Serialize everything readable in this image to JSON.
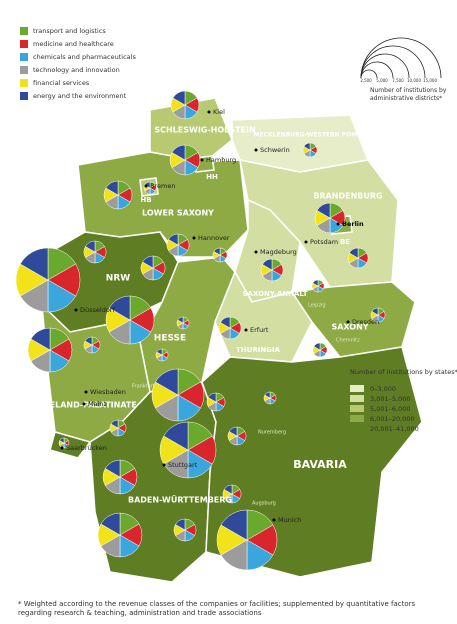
{
  "legend_categories": [
    {
      "label": "transport and logistics",
      "color": "#6aa82e"
    },
    {
      "label": "medicine and healthcare",
      "color": "#d9262c"
    },
    {
      "label": "chemicals and pharmaceuticals",
      "color": "#3aa6dc"
    },
    {
      "label": "technology and innovation",
      "color": "#9c9c9c"
    },
    {
      "label": "financial services",
      "color": "#f2e21a"
    },
    {
      "label": "energy and the environment",
      "color": "#2f4a9a"
    }
  ],
  "size_legend": {
    "ticks": [
      "2,500",
      "5,000",
      "7,500",
      "10,000",
      "15,000"
    ],
    "title": "Number of institutions by administrative districts*"
  },
  "state_legend": {
    "title": "Number of institutions by states*",
    "classes": [
      {
        "label": "0–3,000",
        "color": "#e6edc8"
      },
      {
        "label": "3,001–5,000",
        "color": "#d3dfa2"
      },
      {
        "label": "5,001–6,000",
        "color": "#b7ca72"
      },
      {
        "label": "6,001–20,000",
        "color": "#8eaa45"
      },
      {
        "label": "20,001–41,000",
        "color": "#5f7d22"
      }
    ]
  },
  "states": [
    {
      "label": "SCHLESWIG-HOLSTEIN",
      "color": "#b7ca72"
    },
    {
      "label": "MECKLENBURG-WESTERN POMERANIA",
      "color": "#e6edc8"
    },
    {
      "label": "LOWER SAXONY",
      "color": "#8eaa45"
    },
    {
      "label": "BRANDENBURG",
      "color": "#d3dfa2"
    },
    {
      "label": "SAXONY-ANHALT",
      "color": "#d3dfa2"
    },
    {
      "label": "NRW",
      "color": "#5f7d22"
    },
    {
      "label": "HESSE",
      "color": "#8eaa45"
    },
    {
      "label": "THURINGIA",
      "color": "#d3dfa2"
    },
    {
      "label": "SAXONY",
      "color": "#8eaa45"
    },
    {
      "label": "RHINELAND-PALATINATE",
      "color": "#8eaa45"
    },
    {
      "label": "BADEN-WÜRTTEMBERG",
      "color": "#5f7d22"
    },
    {
      "label": "BAVARIA",
      "color": "#5f7d22"
    },
    {
      "label": "HH",
      "color": "#8eaa45"
    },
    {
      "label": "HB",
      "color": "#b7ca72"
    },
    {
      "label": "BE",
      "color": "#8eaa45"
    }
  ],
  "cities": [
    "Kiel",
    "Hamburg",
    "Schwerin",
    "Bremen",
    "Hannover",
    "Berlin",
    "Potsdam",
    "Magdeburg",
    "Düsseldorf",
    "Erfurt",
    "Dresden",
    "Wiesbaden",
    "Mainz",
    "Saarbrücken",
    "Stuttgart",
    "Munich",
    "Leipzig",
    "Chemnitz",
    "Frankfurt",
    "Nuremberg",
    "Augsburg"
  ],
  "footnote": "* Weighted according to the revenue classes of the companies or facilities; supplemented by quantitative factors regarding research & teaching, administration and trade associations"
}
